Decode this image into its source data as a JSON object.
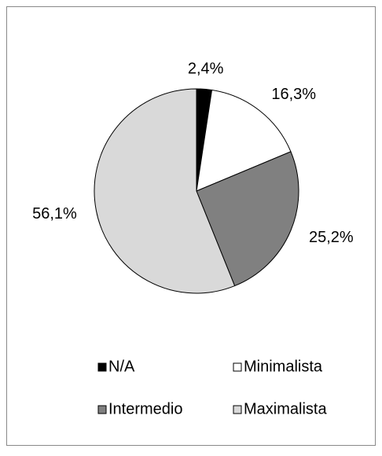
{
  "chart_data": {
    "type": "pie",
    "categories": [
      "N/A",
      "Minimalista",
      "Intermedio",
      "Maximalista"
    ],
    "values": [
      2.4,
      16.3,
      25.2,
      56.1
    ],
    "value_labels": [
      "2,4%",
      "16,3%",
      "25,2%",
      "56,1%"
    ],
    "colors": [
      "#000000",
      "#ffffff",
      "#808080",
      "#d9d9d9"
    ],
    "legend": "bottom"
  }
}
